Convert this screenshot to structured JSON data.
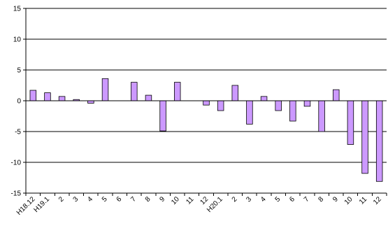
{
  "chart_data": {
    "type": "bar",
    "categories": [
      "H18.12",
      "H19.1",
      "2",
      "3",
      "4",
      "5",
      "6",
      "7",
      "8",
      "9",
      "10",
      "11",
      "12",
      "H20.1",
      "2",
      "3",
      "4",
      "5",
      "6",
      "7",
      "8",
      "9",
      "10",
      "11",
      "12"
    ],
    "values": [
      1.7,
      1.3,
      0.7,
      0.2,
      -0.4,
      3.6,
      0.0,
      3.0,
      0.9,
      -4.9,
      3.0,
      0.0,
      -0.7,
      -1.6,
      2.5,
      -3.8,
      0.7,
      -1.6,
      -3.3,
      -0.9,
      -5.0,
      1.8,
      -7.1,
      -11.8,
      -13.1
    ],
    "yticks": [
      15,
      10,
      5,
      0,
      -5,
      -10,
      -15
    ],
    "ylim": [
      -15,
      15
    ],
    "grid": true,
    "colors": {
      "bar_fill": "#cc99ff",
      "bar_stroke": "#000000",
      "grid": "#000000"
    }
  }
}
